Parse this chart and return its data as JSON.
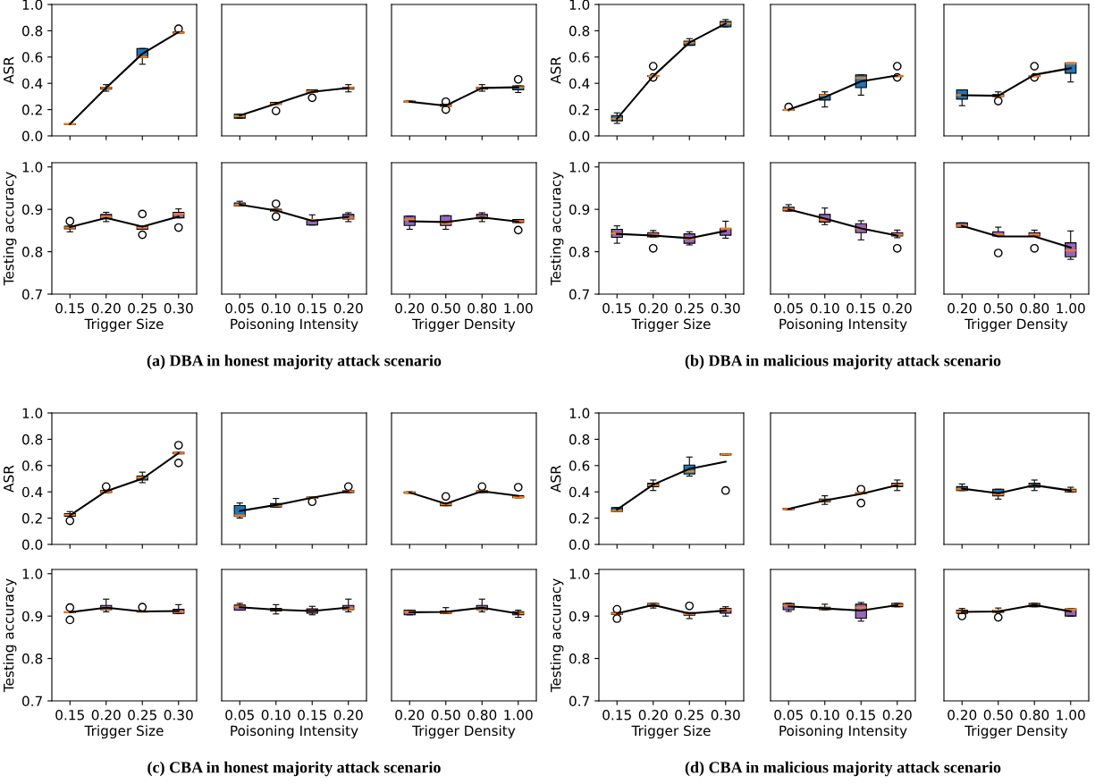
{
  "chart_data": [
    {
      "type": "box",
      "categories": [
        "0.15",
        "0.20",
        "0.25",
        "0.30"
      ],
      "ylabel": "ASR",
      "ylim": [
        0,
        1
      ],
      "yticks": [
        {
          "value": 0,
          "label": "0.0"
        },
        {
          "value": 0.2,
          "label": "0.2"
        },
        {
          "value": 0.4,
          "label": "0.4"
        },
        {
          "value": 0.6,
          "label": "0.6"
        },
        {
          "value": 0.8,
          "label": "0.8"
        },
        {
          "value": 1,
          "label": "1.0"
        }
      ],
      "tick_labels": "y",
      "series": [
        {
          "type": "box",
          "color": "#1f77b4",
          "boxes": [
            {
              "low": 0.087,
              "q1": 0.087,
              "median": 0.09,
              "q3": 0.092,
              "high": 0.092
            },
            {
              "low": 0.34,
              "q1": 0.355,
              "median": 0.365,
              "q3": 0.37,
              "high": 0.39
            },
            {
              "low": 0.545,
              "q1": 0.595,
              "median": 0.6,
              "q3": 0.665,
              "high": 0.665
            },
            {
              "low": 0.782,
              "q1": 0.782,
              "median": 0.785,
              "q3": 0.79,
              "high": 0.79,
              "outliers": [
                0.815
              ]
            }
          ]
        },
        {
          "type": "line",
          "color": "#000000",
          "values": [
            0.09,
            0.365,
            0.625,
            0.79
          ]
        }
      ]
    },
    {
      "type": "box",
      "categories": [
        "0.05",
        "0.10",
        "0.15",
        "0.20"
      ],
      "ylim": [
        0,
        1
      ],
      "tick_labels": false,
      "series": [
        {
          "type": "box",
          "color": "#1f77b4",
          "boxes": [
            {
              "low": 0.135,
              "q1": 0.135,
              "median": 0.15,
              "q3": 0.165,
              "high": 0.165
            },
            {
              "low": 0.24,
              "q1": 0.24,
              "median": 0.245,
              "q3": 0.255,
              "high": 0.255,
              "outliers": [
                0.19
              ]
            },
            {
              "low": 0.333,
              "q1": 0.333,
              "median": 0.34,
              "q3": 0.35,
              "high": 0.35,
              "outliers": [
                0.29
              ]
            },
            {
              "low": 0.335,
              "q1": 0.355,
              "median": 0.365,
              "q3": 0.37,
              "high": 0.39
            }
          ]
        },
        {
          "type": "line",
          "color": "#000000",
          "values": [
            0.155,
            0.245,
            0.335,
            0.365
          ]
        }
      ]
    },
    {
      "type": "box",
      "categories": [
        "0.20",
        "0.50",
        "0.80",
        "1.00"
      ],
      "ylim": [
        0,
        1
      ],
      "tick_labels": false,
      "series": [
        {
          "type": "box",
          "color": "#1f77b4",
          "boxes": [
            {
              "low": 0.255,
              "q1": 0.255,
              "median": 0.26,
              "q3": 0.265,
              "high": 0.265
            },
            {
              "low": 0.225,
              "q1": 0.225,
              "median": 0.23,
              "q3": 0.24,
              "high": 0.24,
              "outliers": [
                0.2,
                0.26
              ]
            },
            {
              "low": 0.34,
              "q1": 0.355,
              "median": 0.365,
              "q3": 0.37,
              "high": 0.39
            },
            {
              "low": 0.33,
              "q1": 0.35,
              "median": 0.37,
              "q3": 0.38,
              "high": 0.38,
              "outliers": [
                0.43
              ]
            }
          ]
        },
        {
          "type": "line",
          "color": "#000000",
          "values": [
            0.26,
            0.23,
            0.365,
            0.37
          ]
        }
      ]
    },
    {
      "type": "box",
      "categories": [
        "0.15",
        "0.20",
        "0.25",
        "0.30"
      ],
      "ylabel": "ASR",
      "ylim": [
        0,
        1
      ],
      "yticks": [
        {
          "value": 0,
          "label": "0.0"
        },
        {
          "value": 0.2,
          "label": "0.2"
        },
        {
          "value": 0.4,
          "label": "0.4"
        },
        {
          "value": 0.6,
          "label": "0.6"
        },
        {
          "value": 0.8,
          "label": "0.8"
        },
        {
          "value": 1,
          "label": "1.0"
        }
      ],
      "tick_labels": "y",
      "series": [
        {
          "type": "box",
          "color": "#1f77b4",
          "boxes": [
            {
              "low": 0.095,
              "q1": 0.115,
              "median": 0.13,
              "q3": 0.155,
              "high": 0.175
            },
            {
              "low": 0.452,
              "q1": 0.452,
              "median": 0.455,
              "q3": 0.458,
              "high": 0.458,
              "outliers": [
                0.53,
                0.445
              ]
            },
            {
              "low": 0.69,
              "q1": 0.69,
              "median": 0.71,
              "q3": 0.72,
              "high": 0.74
            },
            {
              "low": 0.83,
              "q1": 0.83,
              "median": 0.855,
              "q3": 0.87,
              "high": 0.885
            }
          ]
        },
        {
          "type": "line",
          "color": "#000000",
          "values": [
            0.13,
            0.455,
            0.71,
            0.855
          ]
        }
      ]
    },
    {
      "type": "box",
      "categories": [
        "0.05",
        "0.10",
        "0.15",
        "0.20"
      ],
      "ylim": [
        0,
        1
      ],
      "tick_labels": false,
      "series": [
        {
          "type": "box",
          "color": "#1f77b4",
          "boxes": [
            {
              "low": 0.195,
              "q1": 0.195,
              "median": 0.198,
              "q3": 0.2,
              "high": 0.2,
              "outliers": [
                0.22
              ]
            },
            {
              "low": 0.22,
              "q1": 0.273,
              "median": 0.31,
              "q3": 0.316,
              "high": 0.335
            },
            {
              "low": 0.31,
              "q1": 0.367,
              "median": 0.44,
              "q3": 0.464,
              "high": 0.464
            },
            {
              "low": 0.452,
              "q1": 0.452,
              "median": 0.455,
              "q3": 0.458,
              "high": 0.458,
              "outliers": [
                0.53,
                0.445
              ]
            }
          ]
        },
        {
          "type": "line",
          "color": "#000000",
          "values": [
            0.2,
            0.295,
            0.415,
            0.46
          ]
        }
      ]
    },
    {
      "type": "box",
      "categories": [
        "0.20",
        "0.50",
        "0.80",
        "1.00"
      ],
      "ylim": [
        0,
        1
      ],
      "tick_labels": false,
      "series": [
        {
          "type": "box",
          "color": "#1f77b4",
          "boxes": [
            {
              "low": 0.23,
              "q1": 0.28,
              "median": 0.31,
              "q3": 0.35,
              "high": 0.35
            },
            {
              "low": 0.3,
              "q1": 0.3,
              "median": 0.305,
              "q3": 0.315,
              "high": 0.335,
              "outliers": [
                0.265
              ]
            },
            {
              "low": 0.452,
              "q1": 0.452,
              "median": 0.455,
              "q3": 0.458,
              "high": 0.458,
              "outliers": [
                0.53,
                0.445
              ]
            },
            {
              "low": 0.41,
              "q1": 0.477,
              "median": 0.55,
              "q3": 0.555,
              "high": 0.555
            }
          ]
        },
        {
          "type": "line",
          "color": "#000000",
          "values": [
            0.31,
            0.305,
            0.465,
            0.515
          ]
        }
      ]
    },
    {
      "type": "box",
      "categories": [
        "0.15",
        "0.20",
        "0.25",
        "0.30"
      ],
      "xlabel": "Trigger Size",
      "ylabel": "Testing accuracy",
      "ylim": [
        0.7,
        1.01
      ],
      "yticks": [
        {
          "value": 0.7,
          "label": "0.7"
        },
        {
          "value": 0.8,
          "label": "0.8"
        },
        {
          "value": 0.9,
          "label": "0.9"
        },
        {
          "value": 1,
          "label": "1.0"
        }
      ],
      "series": [
        {
          "type": "box",
          "color": "#9467bd",
          "boxes": [
            {
              "low": 0.847,
              "q1": 0.854,
              "median": 0.857,
              "q3": 0.86,
              "high": 0.86,
              "outliers": [
                0.872
              ]
            },
            {
              "low": 0.871,
              "q1": 0.878,
              "median": 0.882,
              "q3": 0.888,
              "high": 0.893
            },
            {
              "low": 0.853,
              "q1": 0.853,
              "median": 0.857,
              "q3": 0.86,
              "high": 0.86,
              "outliers": [
                0.889,
                0.84
              ]
            },
            {
              "low": 0.88,
              "q1": 0.88,
              "median": 0.889,
              "q3": 0.893,
              "high": 0.901,
              "outliers": [
                0.857
              ]
            }
          ]
        },
        {
          "type": "line",
          "color": "#000000",
          "values": [
            0.858,
            0.88,
            0.859,
            0.883
          ]
        }
      ]
    },
    {
      "type": "box",
      "categories": [
        "0.05",
        "0.10",
        "0.15",
        "0.20"
      ],
      "xlabel": "Poisoning Intensity",
      "ylim": [
        0.7,
        1.01
      ],
      "tick_labels": "x",
      "annotations": [
        "(a) DBA in honest majority attack scenario"
      ],
      "series": [
        {
          "type": "box",
          "color": "#9467bd",
          "boxes": [
            {
              "low": 0.908,
              "q1": 0.908,
              "median": 0.91,
              "q3": 0.915,
              "high": 0.919
            },
            {
              "low": 0.895,
              "q1": 0.895,
              "median": 0.897,
              "q3": 0.9,
              "high": 0.9,
              "outliers": [
                0.913,
                0.883
              ]
            },
            {
              "low": 0.863,
              "q1": 0.863,
              "median": 0.875,
              "q3": 0.876,
              "high": 0.887
            },
            {
              "low": 0.871,
              "q1": 0.877,
              "median": 0.88,
              "q3": 0.888,
              "high": 0.892
            }
          ]
        },
        {
          "type": "line",
          "color": "#000000",
          "values": [
            0.911,
            0.897,
            0.873,
            0.882
          ]
        }
      ]
    },
    {
      "type": "box",
      "categories": [
        "0.20",
        "0.50",
        "0.80",
        "1.00"
      ],
      "xlabel": "Trigger Density",
      "ylim": [
        0.7,
        1.01
      ],
      "tick_labels": "x",
      "series": [
        {
          "type": "box",
          "color": "#9467bd",
          "boxes": [
            {
              "low": 0.853,
              "q1": 0.862,
              "median": 0.876,
              "q3": 0.884,
              "high": 0.884
            },
            {
              "low": 0.853,
              "q1": 0.862,
              "median": 0.867,
              "q3": 0.885,
              "high": 0.885
            },
            {
              "low": 0.871,
              "q1": 0.878,
              "median": 0.881,
              "q3": 0.888,
              "high": 0.892
            },
            {
              "low": 0.869,
              "q1": 0.869,
              "median": 0.872,
              "q3": 0.876,
              "high": 0.876,
              "outliers": [
                0.851
              ]
            }
          ]
        },
        {
          "type": "line",
          "color": "#000000",
          "values": [
            0.872,
            0.87,
            0.881,
            0.871
          ]
        }
      ]
    },
    {
      "type": "box",
      "categories": [
        "0.15",
        "0.20",
        "0.25",
        "0.30"
      ],
      "xlabel": "Trigger Size",
      "ylabel": "Testing accuracy",
      "ylim": [
        0.7,
        1.01
      ],
      "yticks": [
        {
          "value": 0.7,
          "label": "0.7"
        },
        {
          "value": 0.8,
          "label": "0.8"
        },
        {
          "value": 0.9,
          "label": "0.9"
        },
        {
          "value": 1,
          "label": "1.0"
        }
      ],
      "series": [
        {
          "type": "box",
          "color": "#9467bd",
          "boxes": [
            {
              "low": 0.82,
              "q1": 0.834,
              "median": 0.843,
              "q3": 0.853,
              "high": 0.861
            },
            {
              "low": 0.835,
              "q1": 0.835,
              "median": 0.84,
              "q3": 0.845,
              "high": 0.85,
              "outliers": [
                0.808
              ]
            },
            {
              "low": 0.816,
              "q1": 0.82,
              "median": 0.83,
              "q3": 0.842,
              "high": 0.847
            },
            {
              "low": 0.832,
              "q1": 0.839,
              "median": 0.855,
              "q3": 0.855,
              "high": 0.872
            }
          ]
        },
        {
          "type": "line",
          "color": "#000000",
          "values": [
            0.842,
            0.838,
            0.832,
            0.849
          ]
        }
      ]
    },
    {
      "type": "box",
      "categories": [
        "0.05",
        "0.10",
        "0.15",
        "0.20"
      ],
      "xlabel": "Poisoning Intensity",
      "ylim": [
        0.7,
        1.01
      ],
      "tick_labels": "x",
      "annotations": [
        "(b) DBA in malicious majority attack scenario"
      ],
      "series": [
        {
          "type": "box",
          "color": "#9467bd",
          "boxes": [
            {
              "low": 0.896,
              "q1": 0.896,
              "median": 0.9,
              "q3": 0.905,
              "high": 0.911
            },
            {
              "low": 0.864,
              "q1": 0.87,
              "median": 0.875,
              "q3": 0.888,
              "high": 0.903
            },
            {
              "low": 0.828,
              "q1": 0.845,
              "median": 0.855,
              "q3": 0.866,
              "high": 0.873
            },
            {
              "low": 0.833,
              "q1": 0.837,
              "median": 0.84,
              "q3": 0.845,
              "high": 0.851,
              "outliers": [
                0.808
              ]
            }
          ]
        },
        {
          "type": "line",
          "color": "#000000",
          "values": [
            0.9,
            0.878,
            0.855,
            0.838
          ]
        }
      ]
    },
    {
      "type": "box",
      "categories": [
        "0.20",
        "0.50",
        "0.80",
        "1.00"
      ],
      "xlabel": "Trigger Density",
      "ylim": [
        0.7,
        1.01
      ],
      "tick_labels": "x",
      "series": [
        {
          "type": "box",
          "color": "#9467bd",
          "boxes": [
            {
              "low": 0.858,
              "q1": 0.858,
              "median": 0.861,
              "q3": 0.868,
              "high": 0.868
            },
            {
              "low": 0.837,
              "q1": 0.837,
              "median": 0.84,
              "q3": 0.847,
              "high": 0.858,
              "outliers": [
                0.797
              ]
            },
            {
              "low": 0.837,
              "q1": 0.837,
              "median": 0.84,
              "q3": 0.845,
              "high": 0.851,
              "outliers": [
                0.808
              ]
            },
            {
              "low": 0.782,
              "q1": 0.788,
              "median": 0.803,
              "q3": 0.821,
              "high": 0.849
            }
          ]
        },
        {
          "type": "line",
          "color": "#000000",
          "values": [
            0.861,
            0.836,
            0.836,
            0.81
          ]
        }
      ]
    },
    {
      "type": "box",
      "categories": [
        "0.15",
        "0.20",
        "0.25",
        "0.30"
      ],
      "ylabel": "ASR",
      "ylim": [
        0,
        1
      ],
      "yticks": [
        {
          "value": 0,
          "label": "0.0"
        },
        {
          "value": 0.2,
          "label": "0.2"
        },
        {
          "value": 0.4,
          "label": "0.4"
        },
        {
          "value": 0.6,
          "label": "0.6"
        },
        {
          "value": 0.8,
          "label": "0.8"
        },
        {
          "value": 1,
          "label": "1.0"
        }
      ],
      "tick_labels": "y",
      "series": [
        {
          "type": "box",
          "color": "#1f77b4",
          "boxes": [
            {
              "low": 0.215,
              "q1": 0.215,
              "median": 0.225,
              "q3": 0.235,
              "high": 0.25,
              "outliers": [
                0.18
              ]
            },
            {
              "low": 0.395,
              "q1": 0.395,
              "median": 0.4,
              "q3": 0.41,
              "high": 0.41,
              "outliers": [
                0.44
              ]
            },
            {
              "low": 0.47,
              "q1": 0.49,
              "median": 0.51,
              "q3": 0.52,
              "high": 0.55
            },
            {
              "low": 0.69,
              "q1": 0.69,
              "median": 0.695,
              "q3": 0.7,
              "high": 0.7,
              "outliers": [
                0.755,
                0.62
              ]
            }
          ]
        },
        {
          "type": "line",
          "color": "#000000",
          "values": [
            0.22,
            0.405,
            0.5,
            0.695
          ]
        }
      ]
    },
    {
      "type": "box",
      "categories": [
        "0.05",
        "0.10",
        "0.15",
        "0.20"
      ],
      "ylim": [
        0,
        1
      ],
      "tick_labels": false,
      "series": [
        {
          "type": "box",
          "color": "#1f77b4",
          "boxes": [
            {
              "low": 0.2,
              "q1": 0.213,
              "median": 0.22,
              "q3": 0.296,
              "high": 0.315
            },
            {
              "low": 0.285,
              "q1": 0.285,
              "median": 0.295,
              "q3": 0.31,
              "high": 0.35
            },
            {
              "low": 0.35,
              "q1": 0.35,
              "median": 0.355,
              "q3": 0.36,
              "high": 0.36,
              "outliers": [
                0.325
              ]
            },
            {
              "low": 0.395,
              "q1": 0.395,
              "median": 0.405,
              "q3": 0.41,
              "high": 0.41,
              "outliers": [
                0.44
              ]
            }
          ]
        },
        {
          "type": "line",
          "color": "#000000",
          "values": [
            0.255,
            0.3,
            0.355,
            0.405
          ]
        }
      ]
    },
    {
      "type": "box",
      "categories": [
        "0.20",
        "0.50",
        "0.80",
        "1.00"
      ],
      "ylim": [
        0,
        1
      ],
      "tick_labels": false,
      "series": [
        {
          "type": "box",
          "color": "#1f77b4",
          "boxes": [
            {
              "low": 0.39,
              "q1": 0.39,
              "median": 0.395,
              "q3": 0.4,
              "high": 0.4
            },
            {
              "low": 0.295,
              "q1": 0.295,
              "median": 0.305,
              "q3": 0.315,
              "high": 0.315,
              "outliers": [
                0.365
              ]
            },
            {
              "low": 0.395,
              "q1": 0.395,
              "median": 0.405,
              "q3": 0.41,
              "high": 0.41,
              "outliers": [
                0.44
              ]
            },
            {
              "low": 0.355,
              "q1": 0.355,
              "median": 0.36,
              "q3": 0.37,
              "high": 0.37,
              "outliers": [
                0.435
              ]
            }
          ]
        },
        {
          "type": "line",
          "color": "#000000",
          "values": [
            0.395,
            0.31,
            0.405,
            0.37
          ]
        }
      ]
    },
    {
      "type": "box",
      "categories": [
        "0.15",
        "0.20",
        "0.25",
        "0.30"
      ],
      "ylabel": "ASR",
      "ylim": [
        0,
        1
      ],
      "yticks": [
        {
          "value": 0,
          "label": "0.0"
        },
        {
          "value": 0.2,
          "label": "0.2"
        },
        {
          "value": 0.4,
          "label": "0.4"
        },
        {
          "value": 0.6,
          "label": "0.6"
        },
        {
          "value": 0.8,
          "label": "0.8"
        },
        {
          "value": 1,
          "label": "1.0"
        }
      ],
      "tick_labels": "y",
      "series": [
        {
          "type": "box",
          "color": "#1f77b4",
          "boxes": [
            {
              "low": 0.25,
              "q1": 0.25,
              "median": 0.255,
              "q3": 0.28,
              "high": 0.28
            },
            {
              "low": 0.41,
              "q1": 0.44,
              "median": 0.45,
              "q3": 0.465,
              "high": 0.49
            },
            {
              "low": 0.52,
              "q1": 0.536,
              "median": 0.555,
              "q3": 0.604,
              "high": 0.665
            },
            {
              "low": 0.68,
              "q1": 0.68,
              "median": 0.685,
              "q3": 0.69,
              "high": 0.69,
              "outliers": [
                0.41
              ]
            }
          ]
        },
        {
          "type": "line",
          "color": "#000000",
          "values": [
            0.265,
            0.455,
            0.575,
            0.63
          ]
        }
      ]
    },
    {
      "type": "box",
      "categories": [
        "0.05",
        "0.10",
        "0.15",
        "0.20"
      ],
      "ylim": [
        0,
        1
      ],
      "tick_labels": false,
      "series": [
        {
          "type": "box",
          "color": "#1f77b4",
          "boxes": [
            {
              "low": 0.265,
              "q1": 0.265,
              "median": 0.27,
              "q3": 0.275,
              "high": 0.275
            },
            {
              "low": 0.305,
              "q1": 0.325,
              "median": 0.335,
              "q3": 0.345,
              "high": 0.37
            },
            {
              "low": 0.387,
              "q1": 0.387,
              "median": 0.39,
              "q3": 0.393,
              "high": 0.393,
              "outliers": [
                0.42,
                0.315
              ]
            },
            {
              "low": 0.41,
              "q1": 0.44,
              "median": 0.455,
              "q3": 0.465,
              "high": 0.49
            }
          ]
        },
        {
          "type": "line",
          "color": "#000000",
          "values": [
            0.27,
            0.335,
            0.385,
            0.45
          ]
        }
      ]
    },
    {
      "type": "box",
      "categories": [
        "0.20",
        "0.50",
        "0.80",
        "1.00"
      ],
      "ylim": [
        0,
        1
      ],
      "tick_labels": false,
      "series": [
        {
          "type": "box",
          "color": "#1f77b4",
          "boxes": [
            {
              "low": 0.41,
              "q1": 0.41,
              "median": 0.42,
              "q3": 0.44,
              "high": 0.46
            },
            {
              "low": 0.345,
              "q1": 0.37,
              "median": 0.38,
              "q3": 0.42,
              "high": 0.42
            },
            {
              "low": 0.41,
              "q1": 0.435,
              "median": 0.45,
              "q3": 0.465,
              "high": 0.49
            },
            {
              "low": 0.4,
              "q1": 0.4,
              "median": 0.41,
              "q3": 0.42,
              "high": 0.435
            }
          ]
        },
        {
          "type": "line",
          "color": "#000000",
          "values": [
            0.425,
            0.39,
            0.45,
            0.41
          ]
        }
      ]
    },
    {
      "type": "box",
      "categories": [
        "0.15",
        "0.20",
        "0.25",
        "0.30"
      ],
      "xlabel": "Trigger Size",
      "ylabel": "Testing accuracy",
      "ylim": [
        0.7,
        1.01
      ],
      "yticks": [
        {
          "value": 0.7,
          "label": "0.7"
        },
        {
          "value": 0.8,
          "label": "0.8"
        },
        {
          "value": 0.9,
          "label": "0.9"
        },
        {
          "value": 1,
          "label": "1.0"
        }
      ],
      "series": [
        {
          "type": "box",
          "color": "#9467bd",
          "boxes": [
            {
              "low": 0.908,
              "q1": 0.908,
              "median": 0.909,
              "q3": 0.91,
              "high": 0.91,
              "outliers": [
                0.92,
                0.891
              ]
            },
            {
              "low": 0.91,
              "q1": 0.915,
              "median": 0.918,
              "q3": 0.925,
              "high": 0.94
            },
            {
              "low": 0.91,
              "q1": 0.91,
              "median": 0.91,
              "q3": 0.911,
              "high": 0.911,
              "outliers": [
                0.921
              ]
            },
            {
              "low": 0.906,
              "q1": 0.906,
              "median": 0.91,
              "q3": 0.916,
              "high": 0.927
            }
          ]
        },
        {
          "type": "line",
          "color": "#000000",
          "values": [
            0.909,
            0.92,
            0.911,
            0.912
          ]
        }
      ]
    },
    {
      "type": "box",
      "categories": [
        "0.05",
        "0.10",
        "0.15",
        "0.20"
      ],
      "xlabel": "Poisoning Intensity",
      "ylim": [
        0.7,
        1.01
      ],
      "tick_labels": "x",
      "annotations": [
        "(c) CBA in honest majority attack scenario"
      ],
      "series": [
        {
          "type": "box",
          "color": "#9467bd",
          "boxes": [
            {
              "low": 0.914,
              "q1": 0.914,
              "median": 0.922,
              "q3": 0.926,
              "high": 0.93
            },
            {
              "low": 0.905,
              "q1": 0.912,
              "median": 0.915,
              "q3": 0.918,
              "high": 0.927
            },
            {
              "low": 0.903,
              "q1": 0.907,
              "median": 0.913,
              "q3": 0.917,
              "high": 0.923
            },
            {
              "low": 0.91,
              "q1": 0.915,
              "median": 0.918,
              "q3": 0.925,
              "high": 0.94
            }
          ]
        },
        {
          "type": "line",
          "color": "#000000",
          "values": [
            0.921,
            0.915,
            0.912,
            0.92
          ]
        }
      ]
    },
    {
      "type": "box",
      "categories": [
        "0.20",
        "0.50",
        "0.80",
        "1.00"
      ],
      "xlabel": "Trigger Density",
      "ylim": [
        0.7,
        1.01
      ],
      "tick_labels": "x",
      "series": [
        {
          "type": "box",
          "color": "#9467bd",
          "boxes": [
            {
              "low": 0.903,
              "q1": 0.903,
              "median": 0.91,
              "q3": 0.914,
              "high": 0.914
            },
            {
              "low": 0.906,
              "q1": 0.906,
              "median": 0.908,
              "q3": 0.912,
              "high": 0.92
            },
            {
              "low": 0.91,
              "q1": 0.915,
              "median": 0.918,
              "q3": 0.925,
              "high": 0.94
            },
            {
              "low": 0.897,
              "q1": 0.903,
              "median": 0.907,
              "q3": 0.91,
              "high": 0.914
            }
          ]
        },
        {
          "type": "line",
          "color": "#000000",
          "values": [
            0.909,
            0.91,
            0.92,
            0.906
          ]
        }
      ]
    },
    {
      "type": "box",
      "categories": [
        "0.15",
        "0.20",
        "0.25",
        "0.30"
      ],
      "xlabel": "Trigger Size",
      "ylabel": "Testing accuracy",
      "ylim": [
        0.7,
        1.01
      ],
      "yticks": [
        {
          "value": 0.7,
          "label": "0.7"
        },
        {
          "value": 0.8,
          "label": "0.8"
        },
        {
          "value": 0.9,
          "label": "0.9"
        },
        {
          "value": 1,
          "label": "1.0"
        }
      ],
      "series": [
        {
          "type": "box",
          "color": "#9467bd",
          "boxes": [
            {
              "low": 0.904,
              "q1": 0.904,
              "median": 0.906,
              "q3": 0.908,
              "high": 0.908,
              "outliers": [
                0.916,
                0.894
              ]
            },
            {
              "low": 0.919,
              "q1": 0.923,
              "median": 0.927,
              "q3": 0.93,
              "high": 0.93
            },
            {
              "low": 0.894,
              "q1": 0.902,
              "median": 0.905,
              "q3": 0.908,
              "high": 0.908,
              "outliers": [
                0.924
              ]
            },
            {
              "low": 0.9,
              "q1": 0.907,
              "median": 0.915,
              "q3": 0.918,
              "high": 0.922
            }
          ]
        },
        {
          "type": "line",
          "color": "#000000",
          "values": [
            0.906,
            0.926,
            0.906,
            0.913
          ]
        }
      ]
    },
    {
      "type": "box",
      "categories": [
        "0.05",
        "0.10",
        "0.15",
        "0.20"
      ],
      "xlabel": "Poisoning Intensity",
      "ylim": [
        0.7,
        1.01
      ],
      "tick_labels": "x",
      "annotations": [
        "(d) CBA in malicious majority attack scenario"
      ],
      "series": [
        {
          "type": "box",
          "color": "#9467bd",
          "boxes": [
            {
              "low": 0.911,
              "q1": 0.915,
              "median": 0.925,
              "q3": 0.93,
              "high": 0.93
            },
            {
              "low": 0.915,
              "q1": 0.915,
              "median": 0.918,
              "q3": 0.921,
              "high": 0.928
            },
            {
              "low": 0.888,
              "q1": 0.895,
              "median": 0.92,
              "q3": 0.928,
              "high": 0.932
            },
            {
              "low": 0.922,
              "q1": 0.922,
              "median": 0.926,
              "q3": 0.93,
              "high": 0.93
            }
          ]
        },
        {
          "type": "line",
          "color": "#000000",
          "values": [
            0.923,
            0.918,
            0.913,
            0.926
          ]
        }
      ]
    },
    {
      "type": "box",
      "categories": [
        "0.20",
        "0.50",
        "0.80",
        "1.00"
      ],
      "xlabel": "Trigger Density",
      "ylim": [
        0.7,
        1.01
      ],
      "tick_labels": "x",
      "series": [
        {
          "type": "box",
          "color": "#9467bd",
          "boxes": [
            {
              "low": 0.906,
              "q1": 0.906,
              "median": 0.91,
              "q3": 0.914,
              "high": 0.918,
              "outliers": [
                0.9
              ]
            },
            {
              "low": 0.909,
              "q1": 0.909,
              "median": 0.913,
              "q3": 0.914,
              "high": 0.919,
              "outliers": [
                0.897
              ]
            },
            {
              "low": 0.922,
              "q1": 0.922,
              "median": 0.926,
              "q3": 0.93,
              "high": 0.93
            },
            {
              "low": 0.9,
              "q1": 0.9,
              "median": 0.915,
              "q3": 0.917,
              "high": 0.917
            }
          ]
        },
        {
          "type": "line",
          "color": "#000000",
          "values": [
            0.91,
            0.911,
            0.926,
            0.911
          ]
        }
      ]
    }
  ]
}
